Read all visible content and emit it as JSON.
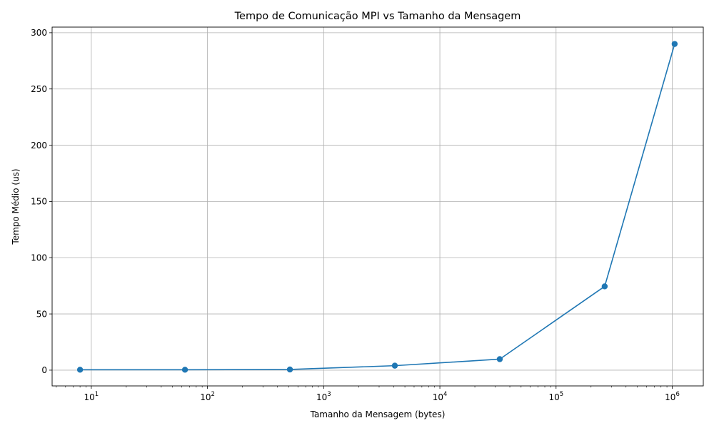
{
  "chart_data": {
    "type": "line",
    "title": "Tempo de Comunicação MPI vs Tamanho da Mensagem",
    "xlabel": "Tamanho da Mensagem (bytes)",
    "ylabel": "Tempo Médio (us)",
    "x_scale": "log",
    "xlim": [
      4.6,
      1850000
    ],
    "ylim": [
      -14,
      305
    ],
    "x_major_ticks": [
      {
        "value": 10,
        "base": "10",
        "exp": "1"
      },
      {
        "value": 100,
        "base": "10",
        "exp": "2"
      },
      {
        "value": 1000,
        "base": "10",
        "exp": "3"
      },
      {
        "value": 10000,
        "base": "10",
        "exp": "4"
      },
      {
        "value": 100000,
        "base": "10",
        "exp": "5"
      },
      {
        "value": 1000000,
        "base": "10",
        "exp": "6"
      }
    ],
    "y_ticks": [
      {
        "value": 0,
        "label": "0"
      },
      {
        "value": 50,
        "label": "50"
      },
      {
        "value": 100,
        "label": "100"
      },
      {
        "value": 150,
        "label": "150"
      },
      {
        "value": 200,
        "label": "200"
      },
      {
        "value": 250,
        "label": "250"
      },
      {
        "value": 300,
        "label": "300"
      }
    ],
    "grid": true,
    "series": [
      {
        "color": "#1f77b4",
        "marker": "circle",
        "x": [
          8,
          64,
          512,
          4096,
          32768,
          262144,
          1048576
        ],
        "y": [
          0.4,
          0.4,
          0.6,
          4.0,
          9.8,
          74.5,
          290.0
        ]
      }
    ]
  }
}
